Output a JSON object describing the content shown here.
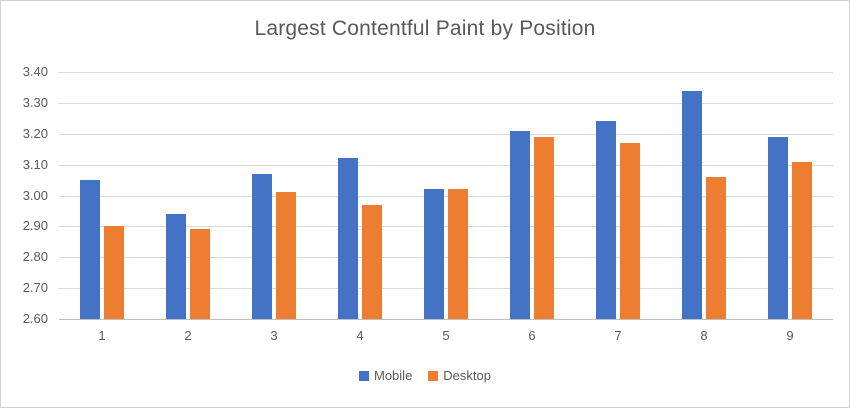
{
  "frame": {
    "background": "#FFFFFF",
    "border_color": "#D2D2D2"
  },
  "chart_data": {
    "type": "bar",
    "title": "Largest Contentful Paint by Position",
    "categories": [
      "1",
      "2",
      "3",
      "4",
      "5",
      "6",
      "7",
      "8",
      "9"
    ],
    "series": [
      {
        "name": "Mobile",
        "color": "#4472C4",
        "values": [
          3.05,
          2.94,
          3.07,
          3.12,
          3.02,
          3.21,
          3.24,
          3.34,
          3.19
        ]
      },
      {
        "name": "Desktop",
        "color": "#ED7D31",
        "values": [
          2.9,
          2.89,
          3.01,
          2.97,
          3.02,
          3.19,
          3.17,
          3.06,
          3.11
        ]
      }
    ],
    "xlabel": "",
    "ylabel": "",
    "ylim": [
      2.6,
      3.4
    ],
    "ytick_step": 0.1,
    "ytick_labels": [
      "2.60",
      "2.70",
      "2.80",
      "2.90",
      "3.00",
      "3.10",
      "3.20",
      "3.30",
      "3.40"
    ],
    "grid": true,
    "legend_position": "bottom",
    "styles": {
      "text_color": "#595959",
      "gridline_color": "#D9D9D9",
      "axis_line_color": "#BFBFBF"
    }
  }
}
